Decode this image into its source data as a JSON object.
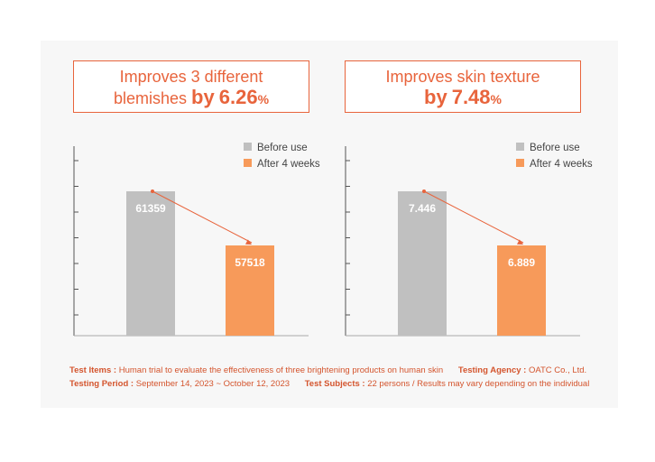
{
  "charts": [
    {
      "claim": {
        "line1": "Improves 3 different",
        "line2_prefix": "blemishes ",
        "by_word": "by",
        "value": "6.26",
        "percent": "%"
      }
    },
    {
      "claim": {
        "line1": "Improves skin texture",
        "line2_prefix": "",
        "by_word": "by",
        "value": "7.48",
        "percent": "%"
      }
    }
  ],
  "chart_data": [
    {
      "type": "bar",
      "categories": [
        "Before use",
        "After 4 weeks"
      ],
      "values": [
        61359,
        57518
      ],
      "labels": [
        "61359",
        "57518"
      ],
      "legend": [
        "Before use",
        "After 4 weeks"
      ],
      "colors": [
        "#c0c0c0",
        "#f79a5a"
      ],
      "legend_position": "top-right",
      "trend_arrow": true
    },
    {
      "type": "bar",
      "categories": [
        "Before use",
        "After 4 weeks"
      ],
      "values": [
        7.446,
        6.889
      ],
      "labels": [
        "7.446",
        "6.889"
      ],
      "legend": [
        "Before use",
        "After 4 weeks"
      ],
      "colors": [
        "#c0c0c0",
        "#f79a5a"
      ],
      "legend_position": "top-right",
      "trend_arrow": true
    }
  ],
  "footer": {
    "test_items_label": "Test Items :",
    "test_items_value": "Human trial to evaluate the effectiveness of three brightening products on human skin",
    "agency_label": "Testing Agency :",
    "agency_value": "OATC Co., Ltd.",
    "period_label": "Testing Period :",
    "period_value": "September 14, 2023 ~ October 12, 2023",
    "subjects_label": "Test Subjects :",
    "subjects_value": "22 persons / Results may vary depending on the individual"
  },
  "colors": {
    "accent": "#e8643c",
    "before": "#c0c0c0",
    "after": "#f79a5a",
    "panel": "#f7f7f7"
  }
}
